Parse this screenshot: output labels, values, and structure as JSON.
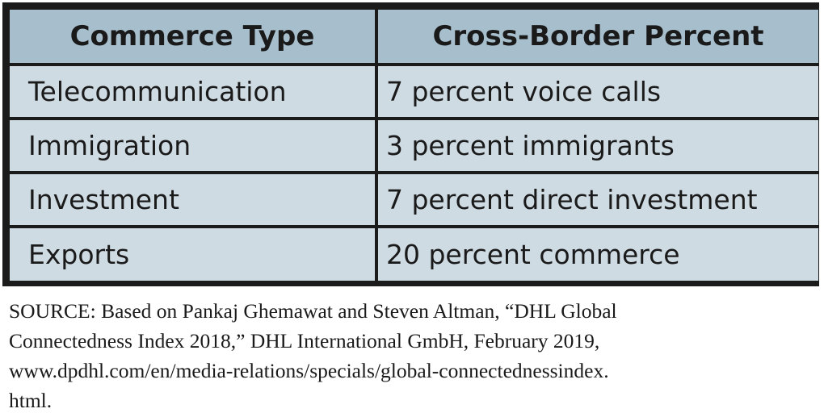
{
  "table": {
    "headers": [
      "Commerce Type",
      "Cross-Border Percent"
    ],
    "rows": [
      [
        "Telecommunication",
        "7 percent voice calls"
      ],
      [
        "Immigration",
        "3 percent immigrants"
      ],
      [
        "Investment",
        "7 percent direct investment"
      ],
      [
        "Exports",
        "20 percent commerce"
      ]
    ]
  },
  "source": {
    "lines": [
      "SOURCE: Based on Pankaj Ghemawat and Steven Altman, “DHL Global",
      "Connectedness Index 2018,” DHL International GmbH, February 2019,",
      "www.dpdhl.com/en/media-relations/specials/global-connectednessindex.",
      "html."
    ]
  },
  "colors": {
    "header_bg": "#a7bfcd",
    "cell_bg": "#cfdbe3",
    "border": "#1b1b1b"
  }
}
